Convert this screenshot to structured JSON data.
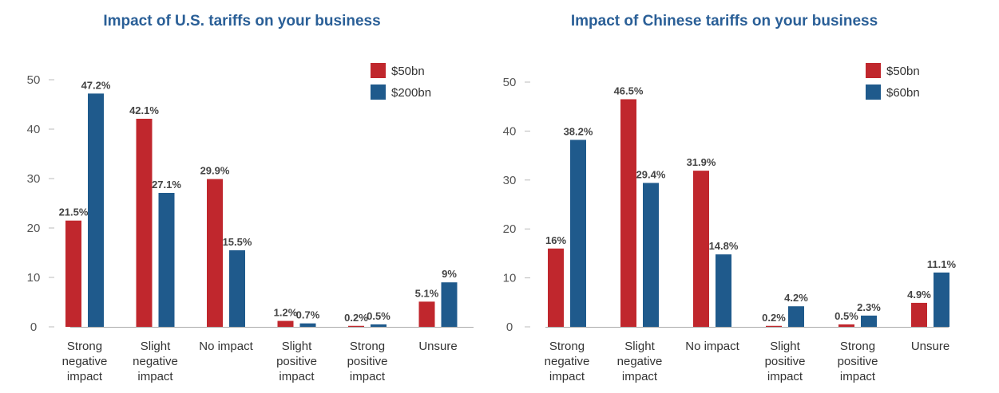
{
  "chart_data": [
    {
      "type": "bar",
      "title": "Impact of U.S. tariffs on your business",
      "categories": [
        [
          "Strong",
          "negative",
          "impact"
        ],
        [
          "Slight",
          "negative",
          "impact"
        ],
        [
          "No impact"
        ],
        [
          "Slight",
          "positive",
          "impact"
        ],
        [
          "Strong",
          "positive",
          "impact"
        ],
        [
          "Unsure"
        ]
      ],
      "series": [
        {
          "name": "$50bn",
          "color": "#c0272d",
          "values": [
            21.5,
            42.1,
            29.9,
            1.2,
            0.2,
            5.1
          ],
          "labels": [
            "21.5%",
            "42.1%",
            "29.9%",
            "1.2%",
            "0.2%",
            "5.1%"
          ]
        },
        {
          "name": "$200bn",
          "color": "#1f5a8c",
          "values": [
            47.2,
            27.1,
            15.5,
            0.7,
            0.5,
            9
          ],
          "labels": [
            "47.2%",
            "27.1%",
            "15.5%",
            "0.7%",
            "0.5%",
            "9%"
          ]
        }
      ],
      "yticks": [
        "0",
        "10",
        "20",
        "30",
        "40",
        "50"
      ],
      "ylim": [
        0,
        50
      ],
      "xlabel": "",
      "ylabel": "",
      "legend": "top-right"
    },
    {
      "type": "bar",
      "title": "Impact of Chinese tariffs on your business",
      "categories": [
        [
          "Strong",
          "negative",
          "impact"
        ],
        [
          "Slight",
          "negative",
          "impact"
        ],
        [
          "No impact"
        ],
        [
          "Slight",
          "positive",
          "impact"
        ],
        [
          "Strong",
          "positive",
          "impact"
        ],
        [
          "Unsure"
        ]
      ],
      "series": [
        {
          "name": "$50bn",
          "color": "#c0272d",
          "values": [
            16,
            46.5,
            31.9,
            0.2,
            0.5,
            4.9
          ],
          "labels": [
            "16%",
            "46.5%",
            "31.9%",
            "0.2%",
            "0.5%",
            "4.9%"
          ]
        },
        {
          "name": "$60bn",
          "color": "#1f5a8c",
          "values": [
            38.2,
            29.4,
            14.8,
            4.2,
            2.3,
            11.1
          ],
          "labels": [
            "38.2%",
            "29.4%",
            "14.8%",
            "4.2%",
            "2.3%",
            "11.1%"
          ]
        }
      ],
      "yticks": [
        "0",
        "10",
        "20",
        "30",
        "40",
        "50"
      ],
      "ylim": [
        0,
        50
      ],
      "xlabel": "",
      "ylabel": "",
      "legend": "top-right"
    }
  ]
}
